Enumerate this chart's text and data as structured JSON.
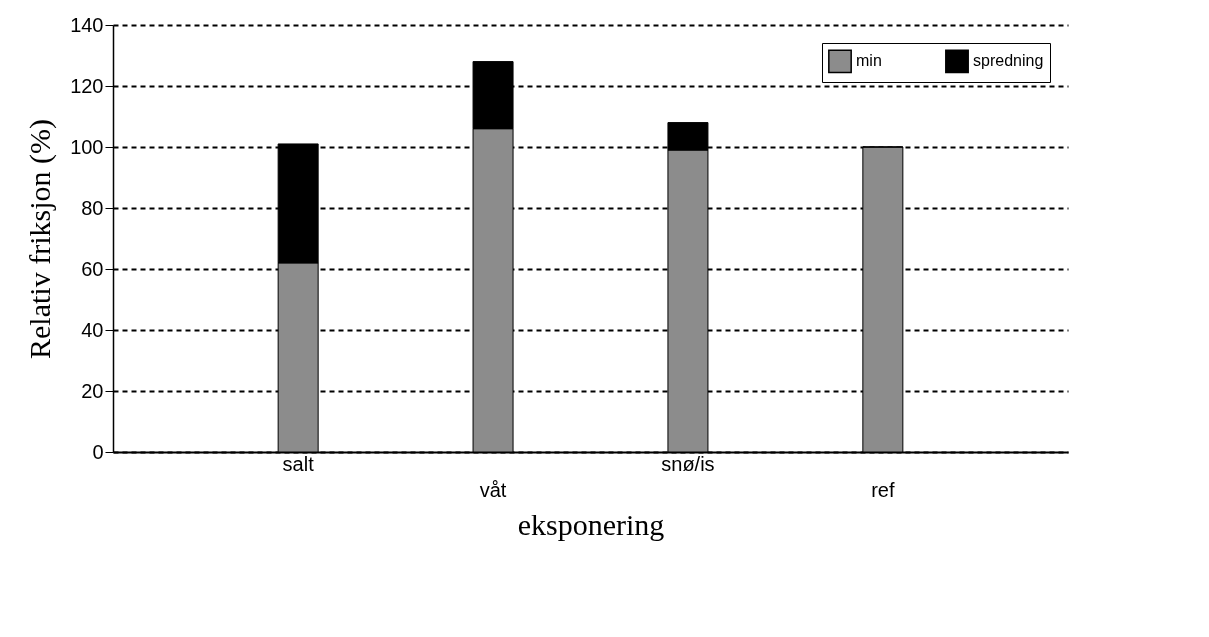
{
  "chart_data": {
    "type": "bar",
    "stacked": true,
    "xlabel": "eksponering",
    "ylabel": "Relativ friksjon (%)",
    "categories": [
      "salt",
      "våt",
      "snø/is",
      "ref"
    ],
    "series": [
      {
        "name": "min",
        "color": "#8c8c8c",
        "values": [
          62,
          106,
          99,
          100
        ]
      },
      {
        "name": "spredning",
        "color": "#000000",
        "values": [
          39,
          22,
          9,
          0
        ]
      }
    ],
    "ylim": [
      0,
      140
    ],
    "yticks": [
      0,
      20,
      40,
      60,
      80,
      100,
      120,
      140
    ],
    "grid": "y",
    "legend": "top right"
  }
}
